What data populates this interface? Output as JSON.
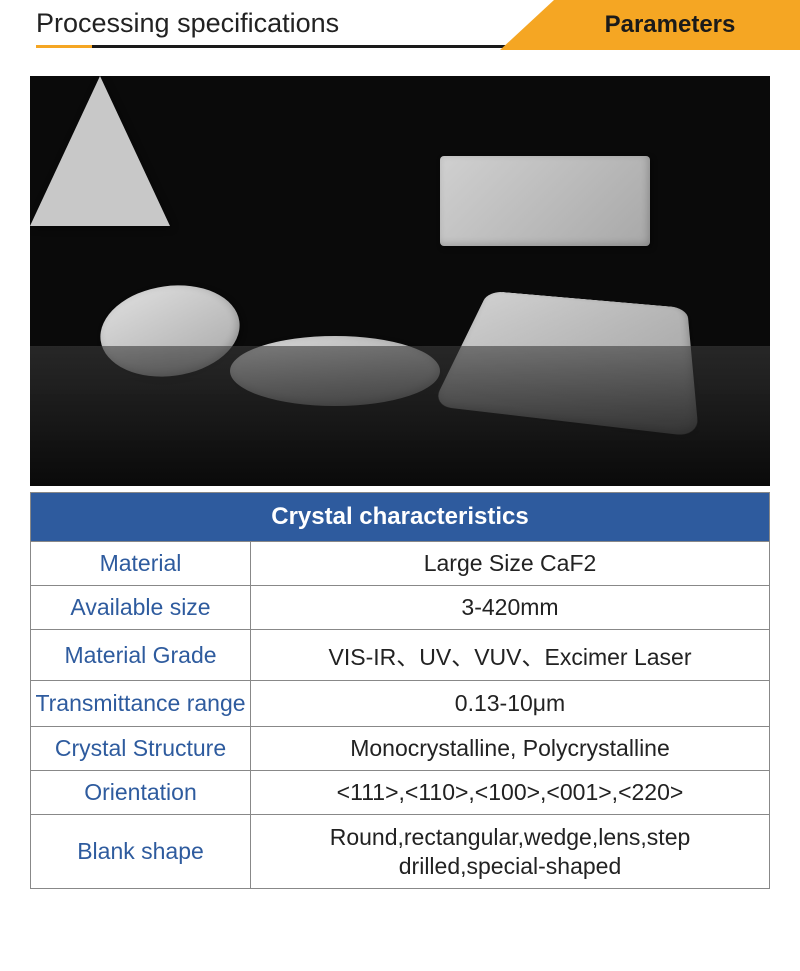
{
  "header": {
    "title": "Processing specifications",
    "tab_label": "Parameters",
    "title_color": "#222222",
    "underline_color": "#1a1a1a",
    "underline_accent_color": "#f5a623",
    "tab_background": "#f5a623",
    "tab_text_color": "#1a1a1a"
  },
  "image": {
    "background_color": "#0a0a0a",
    "shape_color_light": "#d8d8d8",
    "shape_color_dark": "#a8a8a8"
  },
  "table": {
    "header_text": "Crystal characteristics",
    "header_bg": "#2e5b9e",
    "header_fg": "#ffffff",
    "label_color": "#2e5b9e",
    "value_color": "#222222",
    "border_color": "#888888",
    "rows": [
      {
        "label": "Material",
        "value": "Large Size CaF2"
      },
      {
        "label": "Available size",
        "value": "3-420mm"
      },
      {
        "label": "Material Grade",
        "value": "VIS-IR、UV、VUV、Excimer Laser"
      },
      {
        "label": "Transmittance range",
        "value": "0.13-10μm"
      },
      {
        "label": "Crystal Structure",
        "value": "Monocrystalline, Polycrystalline"
      },
      {
        "label": "Orientation",
        "value": "<111>,<110>,<100>,<001>,<220>"
      },
      {
        "label": "Blank shape",
        "value": "Round,rectangular,wedge,lens,step drilled,special-shaped"
      }
    ]
  }
}
